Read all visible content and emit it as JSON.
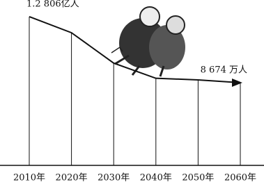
{
  "chart_data": {
    "type": "line",
    "categories": [
      "2010年",
      "2020年",
      "2030年",
      "2040年",
      "2050年",
      "2060年"
    ],
    "values": [
      12806,
      11800,
      9900,
      8950,
      8850,
      8674
    ],
    "value_labels": [
      "1.2 806亿人",
      null,
      null,
      null,
      null,
      "8 674 万人"
    ],
    "color": "#111111",
    "ylim": [
      3500,
      13500
    ]
  }
}
